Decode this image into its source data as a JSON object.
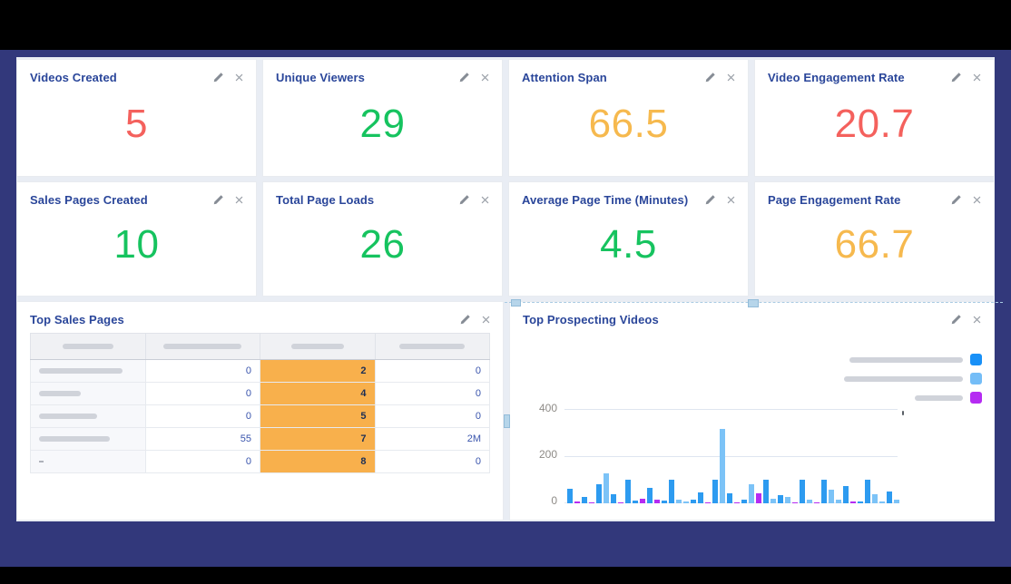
{
  "theme": {
    "page_background": "#32387b",
    "dashboard_background": "#e9edf4",
    "card_background": "#ffffff",
    "title_color": "#2a469a",
    "status_colors": {
      "red": "#f4615d",
      "green": "#16c35f",
      "amber": "#f6b94e"
    }
  },
  "metric_cards": [
    {
      "title": "Videos Created",
      "value": "5",
      "status": "red"
    },
    {
      "title": "Unique Viewers",
      "value": "29",
      "status": "green"
    },
    {
      "title": "Attention Span",
      "value": "66.5",
      "status": "amber"
    },
    {
      "title": "Video Engagement Rate",
      "value": "20.7",
      "status": "red"
    },
    {
      "title": "Sales Pages Created",
      "value": "10",
      "status": "green"
    },
    {
      "title": "Total Page Loads",
      "value": "26",
      "status": "green"
    },
    {
      "title": "Average Page Time (Minutes)",
      "value": "4.5",
      "status": "green"
    },
    {
      "title": "Page Engagement Rate",
      "value": "66.7",
      "status": "amber"
    }
  ],
  "sales_table": {
    "title": "Top Sales Pages",
    "header_placeholder_widths": [
      56,
      86,
      58,
      72
    ],
    "highlight_color": "#f8b04c",
    "rows": [
      {
        "label_placeholder_width": 92,
        "label_text": null,
        "values": [
          "0",
          "2",
          "0"
        ]
      },
      {
        "label_placeholder_width": 46,
        "label_text": null,
        "values": [
          "0",
          "4",
          "0"
        ]
      },
      {
        "label_placeholder_width": 64,
        "label_text": null,
        "values": [
          "0",
          "5",
          "0"
        ]
      },
      {
        "label_placeholder_width": 78,
        "label_text": null,
        "values": [
          "55",
          "7",
          "2M"
        ]
      },
      {
        "label_placeholder_width": null,
        "label_text": "-",
        "values": [
          "0",
          "8",
          "0"
        ]
      }
    ]
  },
  "chart_card": {
    "title": "Top Prospecting Videos",
    "legend": [
      {
        "placeholder_width": 125,
        "color": "#1890f7"
      },
      {
        "placeholder_width": 131,
        "color": "#74bdf7"
      },
      {
        "placeholder_width": 53,
        "color": "#b52bf2"
      }
    ],
    "yticks": [
      "400",
      "200",
      "0"
    ]
  },
  "chart_data": {
    "type": "bar",
    "title": "Top Prospecting Videos",
    "ylim": [
      0,
      400
    ],
    "yticks": [
      0,
      200,
      400
    ],
    "x_tick_labels": [],
    "grid": true,
    "legend_position": "top-right",
    "series_colors": {
      "b": "#2d9bf0",
      "lb": "#7cc3f7",
      "p": "#b52bf2"
    },
    "bars": [
      {
        "c": "b",
        "v": 62
      },
      {
        "c": "p",
        "v": 6
      },
      {
        "c": "b",
        "v": 28
      },
      {
        "c": "p",
        "v": 5
      },
      {
        "c": "b",
        "v": 82
      },
      {
        "c": "lb",
        "v": 128
      },
      {
        "c": "b",
        "v": 40
      },
      {
        "c": "p",
        "v": 5
      },
      {
        "c": "b",
        "v": 100
      },
      {
        "c": "b",
        "v": 12
      },
      {
        "c": "p",
        "v": 20
      },
      {
        "c": "b",
        "v": 65
      },
      {
        "c": "p",
        "v": 16
      },
      {
        "c": "b",
        "v": 12
      },
      {
        "c": "b",
        "v": 102
      },
      {
        "c": "lb",
        "v": 14
      },
      {
        "c": "lb",
        "v": 6
      },
      {
        "c": "b",
        "v": 16
      },
      {
        "c": "b",
        "v": 48
      },
      {
        "c": "p",
        "v": 5
      },
      {
        "c": "b",
        "v": 100
      },
      {
        "c": "lb",
        "v": 318
      },
      {
        "c": "b",
        "v": 42
      },
      {
        "c": "p",
        "v": 5
      },
      {
        "c": "b",
        "v": 14
      },
      {
        "c": "lb",
        "v": 80
      },
      {
        "c": "p",
        "v": 44
      },
      {
        "c": "b",
        "v": 100
      },
      {
        "c": "lb",
        "v": 20
      },
      {
        "c": "b",
        "v": 36
      },
      {
        "c": "lb",
        "v": 26
      },
      {
        "c": "p",
        "v": 5
      },
      {
        "c": "b",
        "v": 100
      },
      {
        "c": "lb",
        "v": 14
      },
      {
        "c": "p",
        "v": 5
      },
      {
        "c": "b",
        "v": 100
      },
      {
        "c": "lb",
        "v": 58
      },
      {
        "c": "lb",
        "v": 14
      },
      {
        "c": "b",
        "v": 72
      },
      {
        "c": "p",
        "v": 9
      },
      {
        "c": "b",
        "v": 8
      },
      {
        "c": "b",
        "v": 100
      },
      {
        "c": "lb",
        "v": 38
      },
      {
        "c": "lb",
        "v": 8
      },
      {
        "c": "b",
        "v": 52
      },
      {
        "c": "lb",
        "v": 14
      }
    ]
  }
}
